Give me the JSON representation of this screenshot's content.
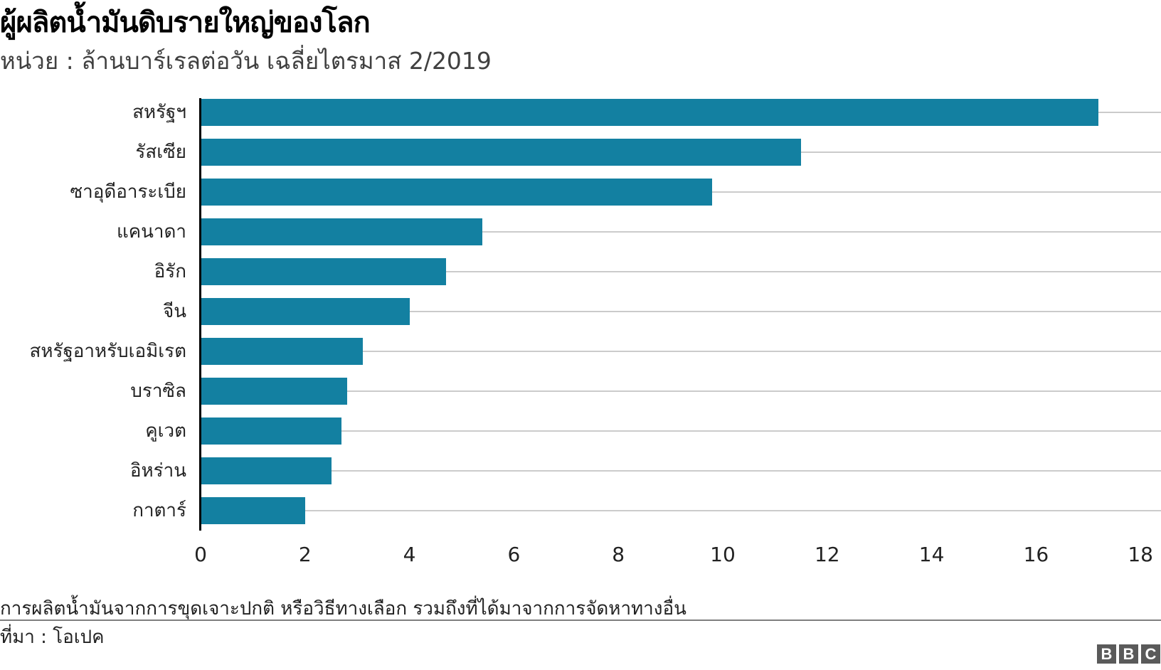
{
  "header": {
    "title": "ผู้ผลิตน้ำมันดิบรายใหญ่ของโลก",
    "subtitle": "หน่วย : ล้านบาร์เรลต่อวัน เฉลี่ยไตรมาส 2/2019"
  },
  "footer": {
    "footnote": "การผลิตน้ำมันจากการขุดเจาะปกติ หรือวิธีทางเลือก รวมถึงที่ได้มาจากการจัดหาทางอื่น",
    "source": "ที่มา : โอเปค",
    "logo": [
      "B",
      "B",
      "C"
    ]
  },
  "colors": {
    "bar": "#1380a1",
    "gridline": "#cbcbcb",
    "axis": "#000000",
    "logo": "#5a5a5a"
  },
  "chart_data": {
    "type": "bar",
    "orientation": "horizontal",
    "title": "ผู้ผลิตน้ำมันดิบรายใหญ่ของโลก",
    "subtitle": "หน่วย : ล้านบาร์เรลต่อวัน เฉลี่ยไตรมาส 2/2019",
    "xlabel": "",
    "ylabel": "",
    "categories": [
      "สหรัฐฯ",
      "รัสเซีย",
      "ซาอุดีอาระเบีย",
      "แคนาดา",
      "อิรัก",
      "จีน",
      "สหรัฐอาหรับเอมิเรต",
      "บราซิล",
      "คูเวต",
      "อิหร่าน",
      "กาตาร์"
    ],
    "values": [
      17.2,
      11.5,
      9.8,
      5.4,
      4.7,
      4.0,
      3.1,
      2.8,
      2.7,
      2.5,
      2.0
    ],
    "xlim": [
      0,
      18
    ],
    "xticks": [
      "0",
      "2",
      "4",
      "6",
      "8",
      "10",
      "12",
      "14",
      "16",
      "18"
    ],
    "grid": true,
    "legend": "none",
    "footnote": "การผลิตน้ำมันจากการขุดเจาะปกติ หรือวิธีทางเลือก รวมถึงที่ได้มาจากการจัดหาทางอื่น",
    "source": "ที่มา : โอเปค"
  }
}
